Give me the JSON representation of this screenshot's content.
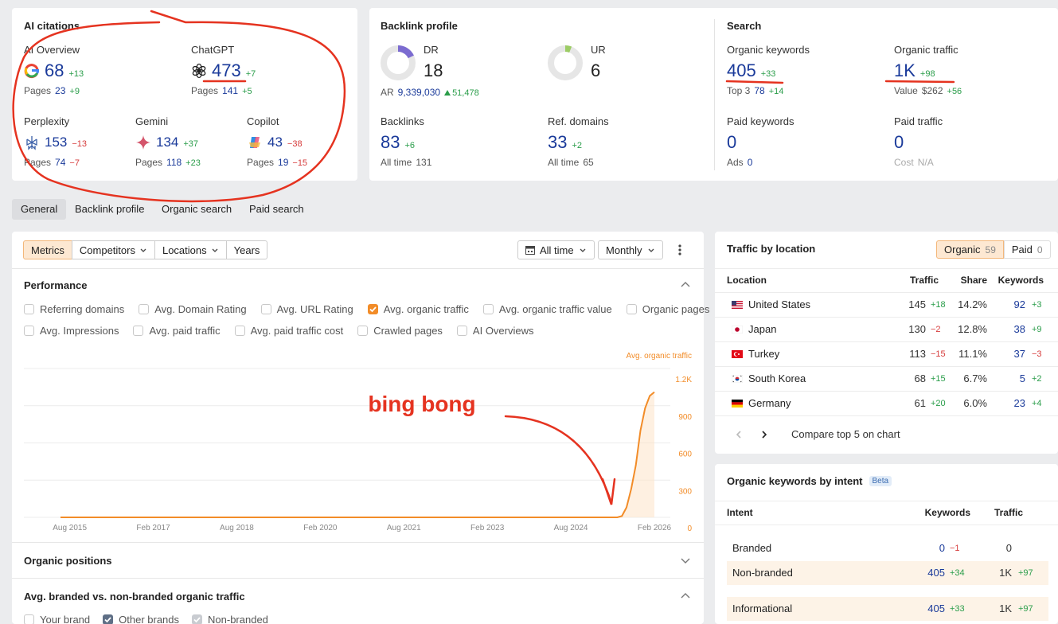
{
  "ai_citations": {
    "title": "AI citations",
    "items": [
      {
        "label": "AI Overview",
        "value": 68,
        "change": "+13",
        "sub_label": "Pages",
        "sub": 23,
        "sub_change": "+9"
      },
      {
        "label": "ChatGPT",
        "value": 473,
        "change": "+7",
        "sub_label": "Pages",
        "sub": 141,
        "sub_change": "+5"
      },
      {
        "label": "Perplexity",
        "value": 153,
        "change": "−13",
        "sub_label": "Pages",
        "sub": 74,
        "sub_change": "−7"
      },
      {
        "label": "Gemini",
        "value": 134,
        "change": "+37",
        "sub_label": "Pages",
        "sub": 118,
        "sub_change": "+23"
      },
      {
        "label": "Copilot",
        "value": 43,
        "change": "−38",
        "sub_label": "Pages",
        "sub": 19,
        "sub_change": "−15"
      }
    ]
  },
  "backlink_profile": {
    "title": "Backlink profile",
    "dr": {
      "label": "DR",
      "value": 18,
      "ar_label": "AR",
      "ar": "9,339,030",
      "ar_change": "51,478"
    },
    "ur": {
      "label": "UR",
      "value": 6
    },
    "backlinks": {
      "label": "Backlinks",
      "value": 83,
      "change": "+6",
      "sub_label": "All time",
      "sub": 131
    },
    "ref_domains": {
      "label": "Ref. domains",
      "value": 33,
      "change": "+2",
      "sub_label": "All time",
      "sub": 65
    }
  },
  "search": {
    "title": "Search",
    "items": [
      {
        "label": "Organic keywords",
        "value": 405,
        "change": "+33",
        "sub_label": "Top 3",
        "sub": 78,
        "sub_change": "+14"
      },
      {
        "label": "Organic traffic",
        "value": "1K",
        "change": "+98",
        "sub_label": "Value",
        "sub": "$262",
        "sub_change": "+56"
      },
      {
        "label": "Paid keywords",
        "value": 0,
        "sub_label": "Ads",
        "sub": 0
      },
      {
        "label": "Paid traffic",
        "value": 0,
        "sub_label": "Cost",
        "sub": "N/A"
      }
    ]
  },
  "tabs": [
    "General",
    "Backlink profile",
    "Organic search",
    "Paid search"
  ],
  "toolbar": {
    "filters": [
      "Metrics",
      "Competitors",
      "Locations",
      "Years"
    ],
    "period": "All time",
    "interval": "Monthly"
  },
  "performance": {
    "title": "Performance",
    "metrics": [
      {
        "label": "Referring domains",
        "checked": false
      },
      {
        "label": "Avg. Domain Rating",
        "checked": false
      },
      {
        "label": "Avg. URL Rating",
        "checked": false
      },
      {
        "label": "Avg. organic traffic",
        "checked": true
      },
      {
        "label": "Avg. organic traffic value",
        "checked": false
      },
      {
        "label": "Organic pages",
        "checked": false
      },
      {
        "label": "Avg. Impressions",
        "checked": false
      },
      {
        "label": "Avg. paid traffic",
        "checked": false
      },
      {
        "label": "Avg. paid traffic cost",
        "checked": false
      },
      {
        "label": "Crawled pages",
        "checked": false
      },
      {
        "label": "AI Overviews",
        "checked": false
      }
    ]
  },
  "chart_data": {
    "type": "line",
    "annotation": "bing bong",
    "x": [
      "Jun 2015",
      "Jun 2025",
      "Jul 2025",
      "Aug 2025",
      "Sep 2025",
      "Oct 2025",
      "Nov 2025",
      "Dec 2025",
      "Jan 2026",
      "Feb 2026"
    ],
    "series": [
      {
        "name": "Avg. organic traffic",
        "color": "#f28c28",
        "values": [
          0,
          0,
          10,
          80,
          230,
          420,
          700,
          880,
          980,
          1010
        ]
      }
    ],
    "ylim": [
      0,
      1200
    ],
    "yticks": [
      0,
      300,
      600,
      900,
      {
        "value": 1200,
        "label": "1.2K"
      }
    ],
    "xticks": [
      "Aug 2015",
      "Feb 2017",
      "Aug 2018",
      "Feb 2020",
      "Aug 2021",
      "Feb 2023",
      "Aug 2024",
      "Feb 2026"
    ],
    "grid": true
  },
  "sections": [
    {
      "title": "Organic positions"
    },
    {
      "title": "Avg. branded vs. non-branded organic traffic",
      "options": [
        {
          "label": "Your brand",
          "checked": false
        },
        {
          "label": "Other brands",
          "checked": true
        },
        {
          "label": "Non-branded",
          "checked": true
        }
      ]
    }
  ],
  "traffic_by_location": {
    "title": "Traffic by location",
    "toggle": [
      {
        "label": "Organic",
        "count": 59
      },
      {
        "label": "Paid",
        "count": 0
      }
    ],
    "columns": [
      "Location",
      "Traffic",
      "Share",
      "Keywords"
    ],
    "rows": [
      {
        "country": "United States",
        "traffic": 145,
        "traffic_change": "+18",
        "share": "14.2%",
        "keywords": 92,
        "keywords_change": "+3"
      },
      {
        "country": "Japan",
        "traffic": 130,
        "traffic_change": "−2",
        "share": "12.8%",
        "keywords": 38,
        "keywords_change": "+9"
      },
      {
        "country": "Turkey",
        "traffic": 113,
        "traffic_change": "−15",
        "share": "11.1%",
        "keywords": 37,
        "keywords_change": "−3"
      },
      {
        "country": "South Korea",
        "traffic": 68,
        "traffic_change": "+15",
        "share": "6.7%",
        "keywords": 5,
        "keywords_change": "+2"
      },
      {
        "country": "Germany",
        "traffic": 61,
        "traffic_change": "+20",
        "share": "6.0%",
        "keywords": 23,
        "keywords_change": "+4"
      }
    ],
    "compare": "Compare top 5 on chart"
  },
  "intent": {
    "title": "Organic keywords by intent",
    "badge": "Beta",
    "columns": [
      "Intent",
      "Keywords",
      "Traffic"
    ],
    "rows": [
      {
        "intent": "Branded",
        "keywords": 0,
        "keywords_change": "−1",
        "traffic": 0
      },
      {
        "intent": "Non-branded",
        "keywords": 405,
        "keywords_change": "+34",
        "traffic": "1K",
        "traffic_change": "+97"
      },
      {
        "intent": "Informational",
        "keywords": 405,
        "keywords_change": "+33",
        "traffic": "1K",
        "traffic_change": "+97"
      }
    ]
  }
}
